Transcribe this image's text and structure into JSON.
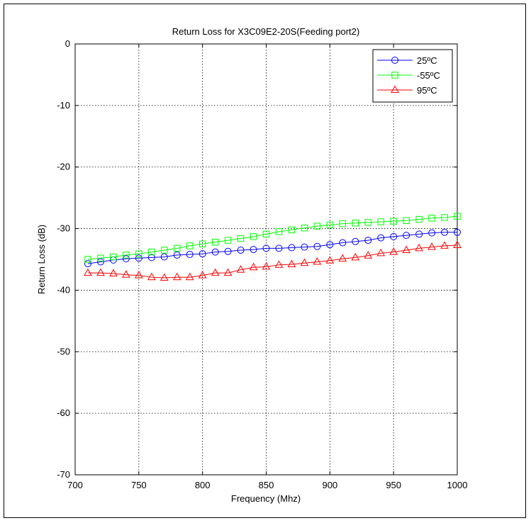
{
  "chart_data": {
    "type": "line",
    "title": "Return Loss for X3C09E2-20S(Feeding port2)",
    "xlabel": "Frequency (Mhz)",
    "ylabel": "Return Loss (dB)",
    "xlim": [
      700,
      1000
    ],
    "ylim": [
      -70,
      0
    ],
    "x_ticks": [
      "700",
      "750",
      "800",
      "850",
      "900",
      "950",
      "1000"
    ],
    "y_ticks": [
      "0",
      "-10",
      "-20",
      "-30",
      "-40",
      "-50",
      "-60",
      "-70"
    ],
    "grid": true,
    "legend_position": "top-right",
    "x": [
      710,
      720,
      730,
      740,
      750,
      760,
      770,
      780,
      790,
      800,
      810,
      820,
      830,
      840,
      850,
      860,
      870,
      880,
      890,
      900,
      910,
      920,
      930,
      940,
      950,
      960,
      970,
      980,
      990,
      1000
    ],
    "series": [
      {
        "name": "25ºC",
        "color": "#0000ff",
        "marker": "circle",
        "values": [
          -35.7,
          -35.4,
          -35.1,
          -34.9,
          -34.8,
          -34.7,
          -34.6,
          -34.3,
          -34.2,
          -34.1,
          -33.8,
          -33.7,
          -33.5,
          -33.4,
          -33.2,
          -33.2,
          -33.1,
          -33.0,
          -32.9,
          -32.6,
          -32.3,
          -32.1,
          -31.9,
          -31.5,
          -31.3,
          -31.1,
          -30.9,
          -30.7,
          -30.6,
          -30.6
        ]
      },
      {
        "name": "-55ºC",
        "color": "#00ff00",
        "marker": "square",
        "values": [
          -35.0,
          -34.8,
          -34.6,
          -34.3,
          -34.1,
          -33.8,
          -33.5,
          -33.2,
          -32.8,
          -32.5,
          -32.2,
          -31.9,
          -31.6,
          -31.3,
          -30.9,
          -30.5,
          -30.2,
          -29.9,
          -29.6,
          -29.4,
          -29.2,
          -29.1,
          -29.0,
          -28.9,
          -28.8,
          -28.7,
          -28.5,
          -28.3,
          -28.2,
          -28.0
        ]
      },
      {
        "name": "95ºC",
        "color": "#ff0000",
        "marker": "triangle",
        "values": [
          -37.2,
          -37.2,
          -37.3,
          -37.5,
          -37.6,
          -37.9,
          -38.0,
          -37.9,
          -37.9,
          -37.6,
          -37.2,
          -37.2,
          -36.7,
          -36.3,
          -36.2,
          -35.9,
          -35.8,
          -35.6,
          -35.4,
          -35.2,
          -34.9,
          -34.7,
          -34.4,
          -34.0,
          -33.8,
          -33.5,
          -33.2,
          -33.0,
          -32.8,
          -32.7
        ]
      }
    ]
  }
}
